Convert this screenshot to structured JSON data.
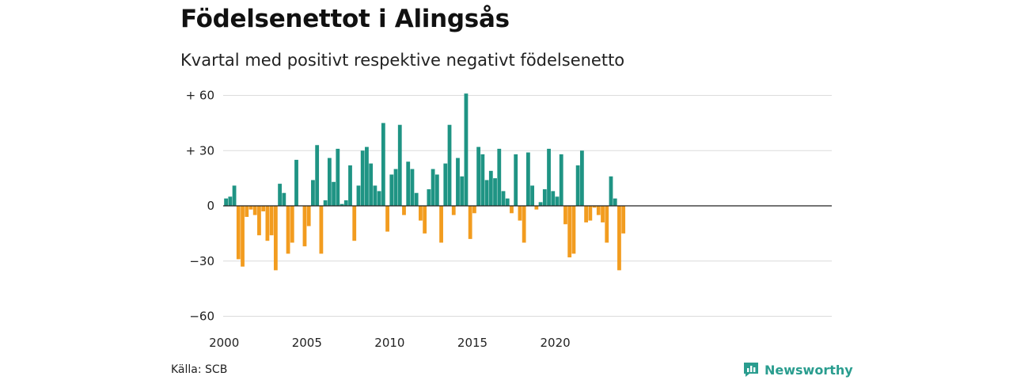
{
  "header": {
    "title": "Födelsenettot i Alingsås",
    "subtitle": "Kvartal med positivt respektive negativt födelsenetto"
  },
  "footer": {
    "source": "Källa: SCB",
    "brand_name": "Newsworthy",
    "brand_icon": "newsworthy-logo-icon"
  },
  "colors": {
    "positive": "#1f9484",
    "negative": "#f29c1f",
    "grid": "#dcdcdc",
    "zero_line": "#222222",
    "brand": "#2a9d8f"
  },
  "chart_data": {
    "type": "bar",
    "title": "Födelsenettot i Alingsås",
    "subtitle": "Kvartal med positivt respektive negativt födelsenetto",
    "xlabel": "",
    "ylabel": "",
    "ylim": [
      -65,
      63
    ],
    "grid": true,
    "yticks": [
      {
        "value": 60,
        "label": "+ 60"
      },
      {
        "value": 30,
        "label": "+ 30"
      },
      {
        "value": 0,
        "label": "0"
      },
      {
        "value": -30,
        "label": "−30"
      },
      {
        "value": -60,
        "label": "−60"
      }
    ],
    "xticks": [
      {
        "year": 2000,
        "label": "2000"
      },
      {
        "year": 2005,
        "label": "2005"
      },
      {
        "year": 2010,
        "label": "2010"
      },
      {
        "year": 2015,
        "label": "2015"
      },
      {
        "year": 2020,
        "label": "2020"
      }
    ],
    "start_year": 2000,
    "start_quarter": 1,
    "values": [
      4,
      5,
      11,
      -29,
      -33,
      -6,
      -2,
      -5,
      -16,
      -3,
      -19,
      -16,
      -35,
      12,
      7,
      -26,
      -20,
      25,
      0,
      -22,
      -11,
      14,
      33,
      -26,
      3,
      26,
      13,
      31,
      1,
      3,
      22,
      -19,
      11,
      30,
      32,
      23,
      11,
      8,
      45,
      -14,
      17,
      20,
      44,
      -5,
      24,
      20,
      7,
      -8,
      -15,
      9,
      20,
      17,
      -20,
      23,
      44,
      -5,
      26,
      16,
      61,
      -18,
      -4,
      32,
      28,
      14,
      19,
      15,
      31,
      8,
      4,
      -4,
      28,
      -8,
      -20,
      29,
      11,
      -2,
      2,
      9,
      31,
      8,
      5,
      28,
      -10,
      -28,
      -26,
      22,
      30,
      -9,
      -8,
      -1,
      -5,
      -9,
      -20,
      16,
      4,
      -35,
      -15
    ]
  }
}
